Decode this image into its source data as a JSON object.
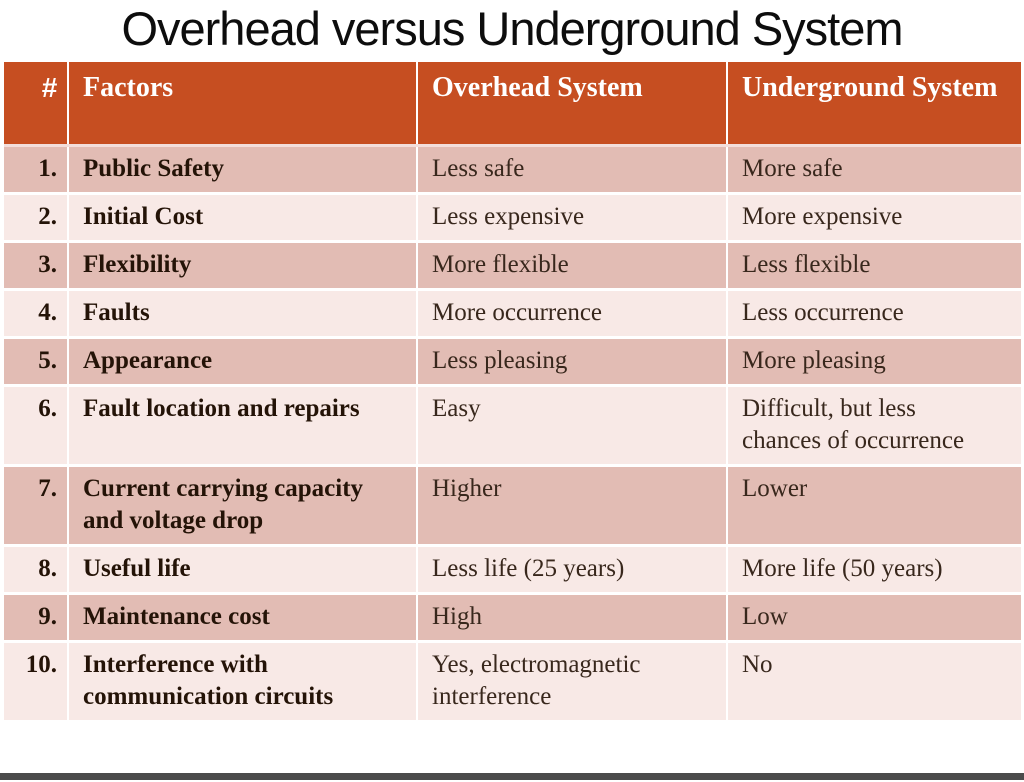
{
  "title": "Overhead versus Underground System",
  "table": {
    "headers": {
      "num": "#",
      "factors": "Factors",
      "overhead": "Overhead System",
      "underground": "Underground System"
    },
    "rows": [
      {
        "num": "1.",
        "factor": "Public Safety",
        "overhead": "Less safe",
        "underground": "More safe"
      },
      {
        "num": "2.",
        "factor": "Initial Cost",
        "overhead": "Less expensive",
        "underground": "More expensive"
      },
      {
        "num": "3.",
        "factor": "Flexibility",
        "overhead": "More flexible",
        "underground": "Less flexible"
      },
      {
        "num": "4.",
        "factor": "Faults",
        "overhead": "More occurrence",
        "underground": "Less occurrence"
      },
      {
        "num": "5.",
        "factor": "Appearance",
        "overhead": "Less pleasing",
        "underground": "More pleasing"
      },
      {
        "num": "6.",
        "factor": "Fault location and repairs",
        "overhead": "Easy",
        "underground": "Difficult, but less chances of occurrence"
      },
      {
        "num": "7.",
        "factor": "Current carrying capacity and voltage drop",
        "overhead": "Higher",
        "underground": "Lower"
      },
      {
        "num": "8.",
        "factor": "Useful life",
        "overhead": "Less life (25 years)",
        "underground": "More life (50 years)"
      },
      {
        "num": "9.",
        "factor": "Maintenance cost",
        "overhead": "High",
        "underground": "Low"
      },
      {
        "num": "10.",
        "factor": "Interference with communication circuits",
        "overhead": "Yes, electromagnetic interference",
        "underground": "No"
      }
    ]
  },
  "colors": {
    "header_bg": "#c64e21",
    "header_text": "#ffffff",
    "row_dark": "#e2bcb4",
    "row_light": "#f8e9e6",
    "factor_text": "#241307",
    "value_text": "#38271c",
    "title_text": "#0d0d0d",
    "bottom_bar": "#4b4b4b"
  }
}
